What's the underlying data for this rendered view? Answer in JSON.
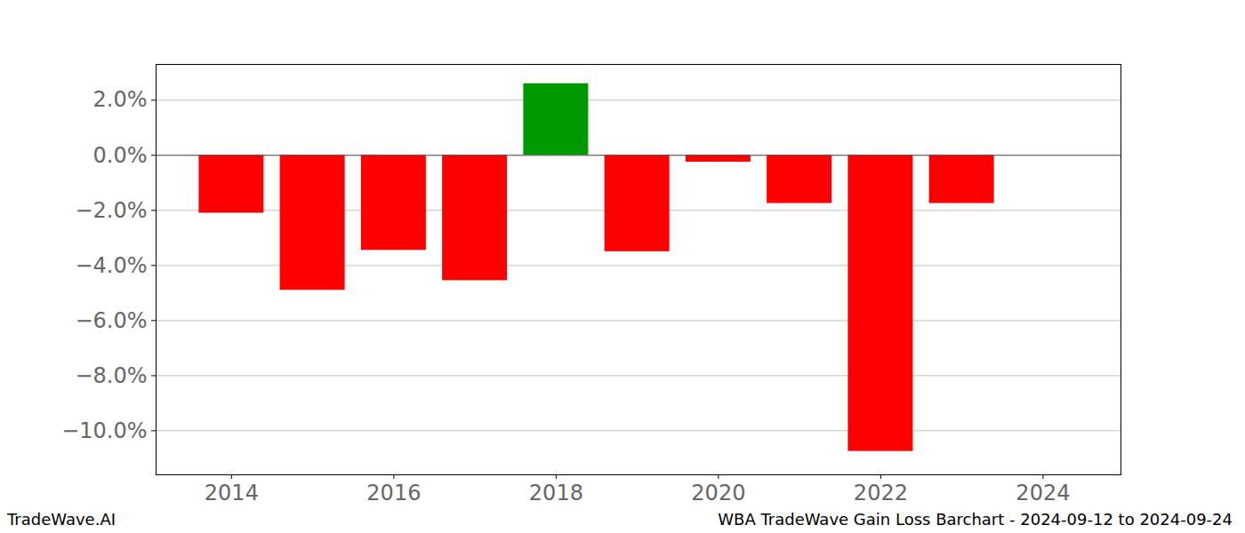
{
  "chart_data": {
    "type": "bar",
    "x": [
      2014,
      2015,
      2016,
      2017,
      2018,
      2019,
      2020,
      2021,
      2022,
      2023
    ],
    "values": [
      -2.1,
      -4.9,
      -3.45,
      -4.55,
      2.6,
      -3.5,
      -0.25,
      -1.75,
      -10.75,
      -1.75
    ],
    "colors": [
      "#ff0000",
      "#ff0000",
      "#ff0000",
      "#ff0000",
      "#009900",
      "#ff0000",
      "#ff0000",
      "#ff0000",
      "#ff0000",
      "#ff0000"
    ],
    "xlim": [
      2013.07,
      2024.96
    ],
    "xticks": [
      2014,
      2016,
      2018,
      2020,
      2022,
      2024
    ],
    "ylim": [
      -11.6,
      3.3
    ],
    "yticks": [
      {
        "value": -10,
        "label": "−10.0%"
      },
      {
        "value": -8,
        "label": "−8.0%"
      },
      {
        "value": -6,
        "label": "−6.0%"
      },
      {
        "value": -4,
        "label": "−4.0%"
      },
      {
        "value": -2,
        "label": "−2.0%"
      },
      {
        "value": 0,
        "label": "0.0%"
      },
      {
        "value": 2,
        "label": "2.0%"
      }
    ],
    "grid": true,
    "annotations": [
      "TradeWave.AI",
      "WBA TradeWave Gain Loss Barchart - 2024-09-12 to 2024-09-24"
    ]
  }
}
